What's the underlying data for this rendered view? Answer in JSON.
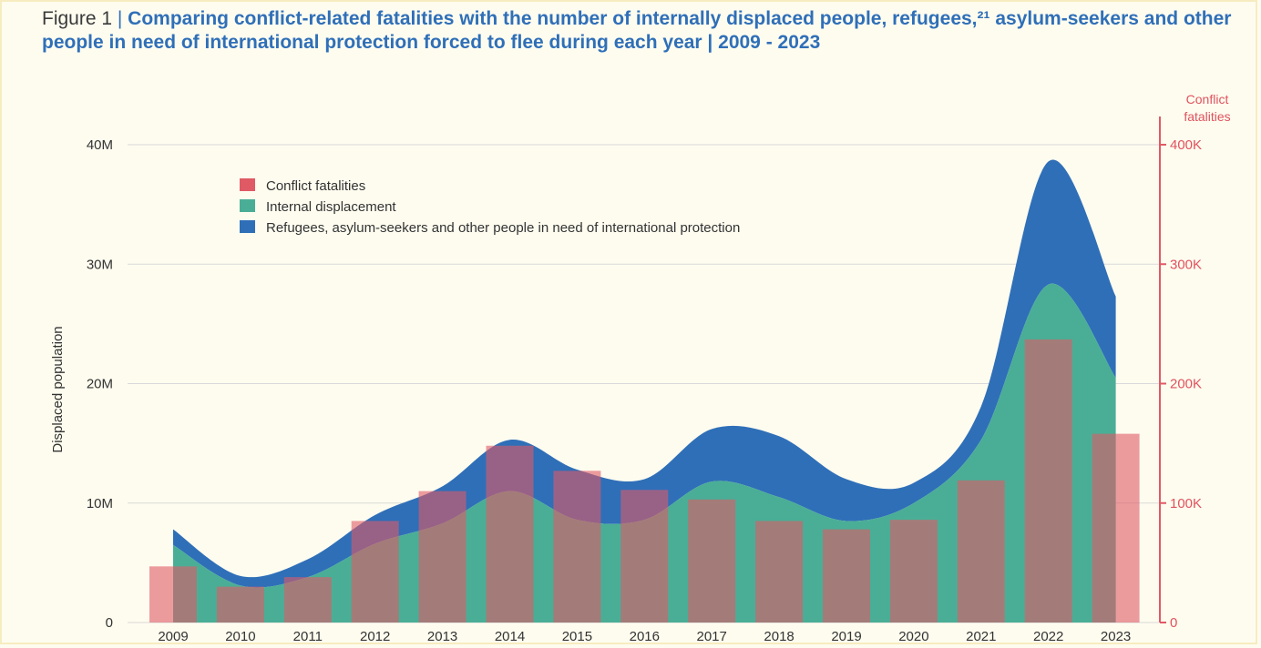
{
  "figure": {
    "label": "Figure 1",
    "separator": " | ",
    "title": "Comparing conflict-related fatalities with the number of internally displaced people, refugees,²¹ asylum-seekers and other people in need of international protection forced to flee during each year | 2009 - 2023"
  },
  "chart_data": {
    "type": "bar",
    "title": "Comparing conflict-related fatalities with the number of internally displaced people, refugees,²¹ asylum-seekers and other people in need of international protection forced to flee during each year | 2009 - 2023",
    "categories": [
      "2009",
      "2010",
      "2011",
      "2012",
      "2013",
      "2014",
      "2015",
      "2016",
      "2017",
      "2018",
      "2019",
      "2020",
      "2021",
      "2022",
      "2023"
    ],
    "ylabel": "Displaced population",
    "ylabel_right": "Conflict fatalities",
    "ylim": [
      0,
      40000000
    ],
    "ylim_right": [
      0,
      400000
    ],
    "yticks": [
      "0",
      "10M",
      "20M",
      "30M",
      "40M"
    ],
    "yticks_right": [
      "0",
      "100K",
      "200K",
      "300K",
      "400K"
    ],
    "grid": true,
    "legend_position": "top-left",
    "series": [
      {
        "name": "Conflict fatalities",
        "kind": "bar",
        "axis": "right",
        "color": "#e05a65",
        "values": [
          47000,
          30000,
          38000,
          85000,
          110000,
          148000,
          127000,
          111000,
          103000,
          85000,
          78000,
          86000,
          119000,
          237000,
          158000
        ]
      },
      {
        "name": "Internal displacement",
        "kind": "area",
        "axis": "left",
        "color": "#4aae96",
        "values": [
          6500000,
          3100000,
          3800000,
          6600000,
          8300000,
          11000000,
          8600000,
          8600000,
          11800000,
          10500000,
          8500000,
          10000000,
          15300000,
          28300000,
          20500000
        ]
      },
      {
        "name": "Refugees, asylum-seekers and other people in need of international protection",
        "kind": "stacked-area",
        "axis": "left",
        "color": "#2f6fb8",
        "values": [
          1300000,
          800000,
          1500000,
          2400000,
          3100000,
          4300000,
          4200000,
          3400000,
          4400000,
          5100000,
          3500000,
          1700000,
          2800000,
          10300000,
          6800000
        ]
      }
    ]
  }
}
